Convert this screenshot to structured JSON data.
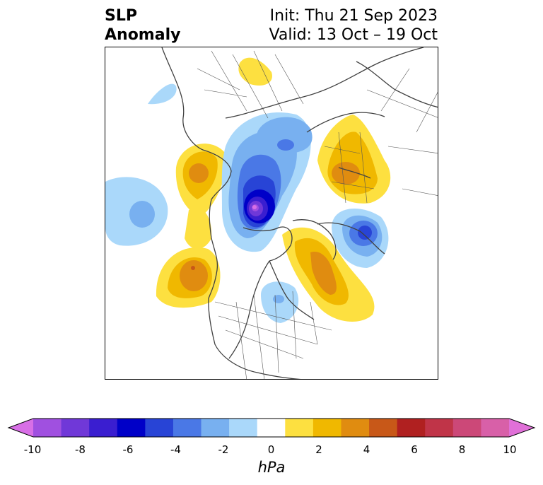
{
  "title": {
    "left_line1": "SLP",
    "left_line2": "Anomaly",
    "init": "Init: Thu 21 Sep 2023",
    "valid": "Valid: 13 Oct – 19 Oct"
  },
  "colorbar": {
    "units": "hPa",
    "ticks": [
      "-10",
      "-8",
      "-6",
      "-4",
      "-2",
      "0",
      "2",
      "4",
      "6",
      "8",
      "10"
    ],
    "colors": [
      "#d86fe6",
      "#a050e0",
      "#7038d8",
      "#3a1ed0",
      "#0000c8",
      "#2844d6",
      "#4a78e6",
      "#78b0f0",
      "#aad8fa",
      "#ffffff",
      "#fde040",
      "#f0b800",
      "#e08c10",
      "#c85818",
      "#b02020",
      "#c03448",
      "#cc4878",
      "#d860a8",
      "#e070d8"
    ]
  }
}
